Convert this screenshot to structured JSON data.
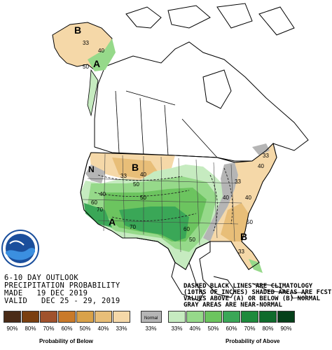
{
  "header": {
    "line1": "6-10 DAY OUTLOOK",
    "line2": "PRECIPITATION PROBABILITY",
    "line3": "MADE   19 DEC 2019",
    "line4": "VALID   DEC 25 - 29, 2019"
  },
  "note": {
    "line1": "DASHED BLACK LINES ARE CLIMATOLOGY",
    "line2": "(10THS OF INCHES) SHADED AREAS ARE FCST",
    "line3": "VALUES ABOVE (A) OR BELOW (B) NORMAL",
    "line4": "GRAY AREAS ARE NEAR-NORMAL"
  },
  "logo": {
    "text": "NOAA"
  },
  "map_labels": {
    "alaska_b": "B",
    "alaska_a": "A",
    "west_b": "B",
    "west_n": "N",
    "sw_a": "A",
    "se_b": "B",
    "c33a": "33",
    "c50a": "50",
    "c40a": "40",
    "c50b": "50",
    "c40b": "40",
    "c33b": "33",
    "c40c": "40",
    "c50c": "50",
    "c60": "60",
    "c70": "70",
    "c70b": "70",
    "c60b": "60",
    "c50d": "50",
    "c40d": "40",
    "c33c": "33",
    "c40e": "40",
    "c50e": "50",
    "c33d": "33",
    "c40f": "40",
    "c33e": "33"
  },
  "legend": {
    "below_pcts": [
      "90%",
      "80%",
      "70%",
      "60%",
      "50%",
      "40%",
      "33%"
    ],
    "normal_pct": "33%",
    "above_pcts": [
      "33%",
      "40%",
      "50%",
      "60%",
      "70%",
      "80%",
      "90%"
    ],
    "normal_label": "Normal",
    "below_label": "Probability of Below",
    "above_label": "Probability of Above",
    "below_colors": [
      "#4a2b17",
      "#7a3f10",
      "#a0522d",
      "#c97a2a",
      "#d9a24a",
      "#e8be78",
      "#f5d8a8"
    ],
    "normal_color": "#b5b5b5",
    "above_colors": [
      "#c6ebc0",
      "#96d98a",
      "#6cc45f",
      "#3aa757",
      "#1e8a3c",
      "#0f6b2c",
      "#05401a"
    ]
  }
}
